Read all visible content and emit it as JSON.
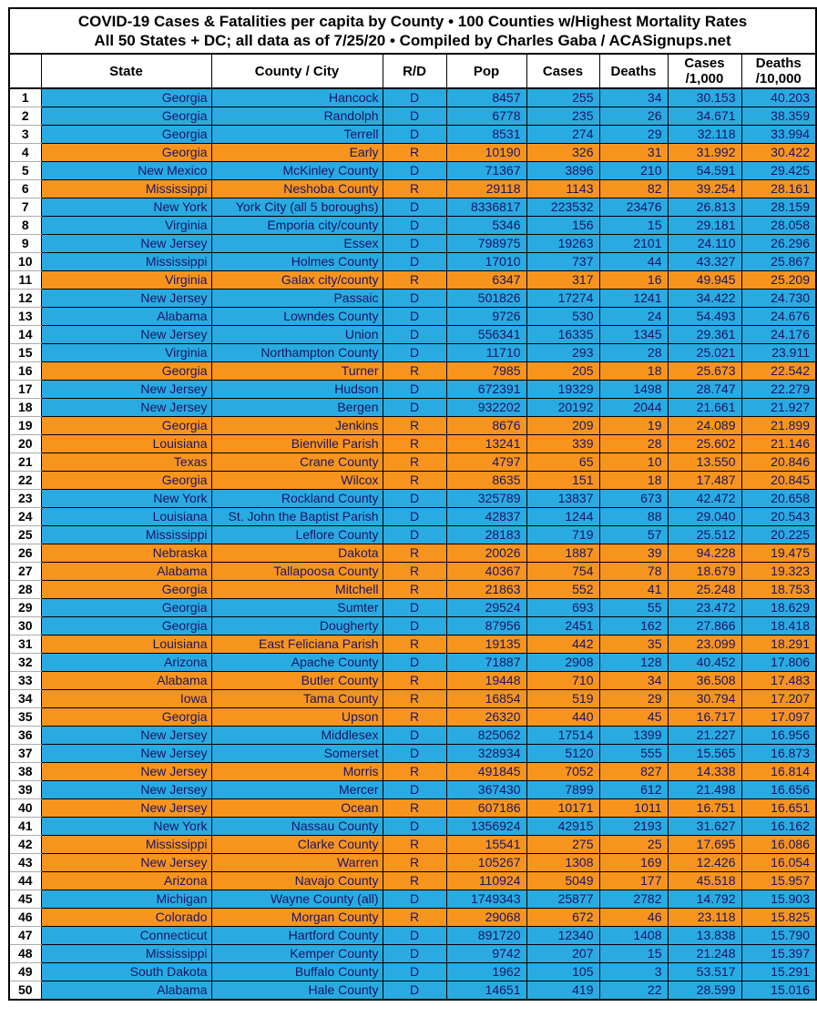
{
  "colors": {
    "dem_row": "#29ABE2",
    "rep_row": "#F7941E",
    "row_text": "#1B1464",
    "rank_text": "#000000",
    "border": "#000000",
    "header_bg": "#FFFFFF"
  },
  "legend": {
    "D_means": "dem_row color",
    "R_means": "rep_row color"
  },
  "chart_data": {
    "type": "table",
    "title": "COVID-19 Cases & Fatalities per capita by County • 100 Counties w/Highest Mortality Rates",
    "subtitle": "All 50 States + DC; all data as of 7/25/20  • Compiled by Charles Gaba / ACASignups.net",
    "columns": [
      {
        "label": ""
      },
      {
        "label": "State"
      },
      {
        "label": "County / City"
      },
      {
        "label": "R/D"
      },
      {
        "label": "Pop"
      },
      {
        "label": "Cases"
      },
      {
        "label": "Deaths"
      },
      {
        "label": "Cases",
        "sublabel": "/1,000"
      },
      {
        "label": "Deaths",
        "sublabel": "/10,000"
      }
    ],
    "rows": [
      [
        "1",
        "Georgia",
        "Hancock",
        "D",
        "8457",
        "255",
        "34",
        "30.153",
        "40.203"
      ],
      [
        "2",
        "Georgia",
        "Randolph",
        "D",
        "6778",
        "235",
        "26",
        "34.671",
        "38.359"
      ],
      [
        "3",
        "Georgia",
        "Terrell",
        "D",
        "8531",
        "274",
        "29",
        "32.118",
        "33.994"
      ],
      [
        "4",
        "Georgia",
        "Early",
        "R",
        "10190",
        "326",
        "31",
        "31.992",
        "30.422"
      ],
      [
        "5",
        "New Mexico",
        "McKinley County",
        "D",
        "71367",
        "3896",
        "210",
        "54.591",
        "29.425"
      ],
      [
        "6",
        "Mississippi",
        "Neshoba County",
        "R",
        "29118",
        "1143",
        "82",
        "39.254",
        "28.161"
      ],
      [
        "7",
        "New York",
        "York City (all 5 boroughs)",
        "D",
        "8336817",
        "223532",
        "23476",
        "26.813",
        "28.159"
      ],
      [
        "8",
        "Virginia",
        "Emporia city/county",
        "D",
        "5346",
        "156",
        "15",
        "29.181",
        "28.058"
      ],
      [
        "9",
        "New Jersey",
        "Essex",
        "D",
        "798975",
        "19263",
        "2101",
        "24.110",
        "26.296"
      ],
      [
        "10",
        "Mississippi",
        "Holmes County",
        "D",
        "17010",
        "737",
        "44",
        "43.327",
        "25.867"
      ],
      [
        "11",
        "Virginia",
        "Galax city/county",
        "R",
        "6347",
        "317",
        "16",
        "49.945",
        "25.209"
      ],
      [
        "12",
        "New Jersey",
        "Passaic",
        "D",
        "501826",
        "17274",
        "1241",
        "34.422",
        "24.730"
      ],
      [
        "13",
        "Alabama",
        "Lowndes County",
        "D",
        "9726",
        "530",
        "24",
        "54.493",
        "24.676"
      ],
      [
        "14",
        "New Jersey",
        "Union",
        "D",
        "556341",
        "16335",
        "1345",
        "29.361",
        "24.176"
      ],
      [
        "15",
        "Virginia",
        "Northampton County",
        "D",
        "11710",
        "293",
        "28",
        "25.021",
        "23.911"
      ],
      [
        "16",
        "Georgia",
        "Turner",
        "R",
        "7985",
        "205",
        "18",
        "25.673",
        "22.542"
      ],
      [
        "17",
        "New Jersey",
        "Hudson",
        "D",
        "672391",
        "19329",
        "1498",
        "28.747",
        "22.279"
      ],
      [
        "18",
        "New Jersey",
        "Bergen",
        "D",
        "932202",
        "20192",
        "2044",
        "21.661",
        "21.927"
      ],
      [
        "19",
        "Georgia",
        "Jenkins",
        "R",
        "8676",
        "209",
        "19",
        "24.089",
        "21.899"
      ],
      [
        "20",
        "Louisiana",
        "Bienville Parish",
        "R",
        "13241",
        "339",
        "28",
        "25.602",
        "21.146"
      ],
      [
        "21",
        "Texas",
        "Crane County",
        "R",
        "4797",
        "65",
        "10",
        "13.550",
        "20.846"
      ],
      [
        "22",
        "Georgia",
        "Wilcox",
        "R",
        "8635",
        "151",
        "18",
        "17.487",
        "20.845"
      ],
      [
        "23",
        "New York",
        "Rockland County",
        "D",
        "325789",
        "13837",
        "673",
        "42.472",
        "20.658"
      ],
      [
        "24",
        "Louisiana",
        "St. John the Baptist Parish",
        "D",
        "42837",
        "1244",
        "88",
        "29.040",
        "20.543"
      ],
      [
        "25",
        "Mississippi",
        "Leflore County",
        "D",
        "28183",
        "719",
        "57",
        "25.512",
        "20.225"
      ],
      [
        "26",
        "Nebraska",
        "Dakota",
        "R",
        "20026",
        "1887",
        "39",
        "94.228",
        "19.475"
      ],
      [
        "27",
        "Alabama",
        "Tallapoosa County",
        "R",
        "40367",
        "754",
        "78",
        "18.679",
        "19.323"
      ],
      [
        "28",
        "Georgia",
        "Mitchell",
        "R",
        "21863",
        "552",
        "41",
        "25.248",
        "18.753"
      ],
      [
        "29",
        "Georgia",
        "Sumter",
        "D",
        "29524",
        "693",
        "55",
        "23.472",
        "18.629"
      ],
      [
        "30",
        "Georgia",
        "Dougherty",
        "D",
        "87956",
        "2451",
        "162",
        "27.866",
        "18.418"
      ],
      [
        "31",
        "Louisiana",
        "East Feliciana Parish",
        "R",
        "19135",
        "442",
        "35",
        "23.099",
        "18.291"
      ],
      [
        "32",
        "Arizona",
        "Apache County",
        "D",
        "71887",
        "2908",
        "128",
        "40.452",
        "17.806"
      ],
      [
        "33",
        "Alabama",
        "Butler County",
        "R",
        "19448",
        "710",
        "34",
        "36.508",
        "17.483"
      ],
      [
        "34",
        "Iowa",
        "Tama County",
        "R",
        "16854",
        "519",
        "29",
        "30.794",
        "17.207"
      ],
      [
        "35",
        "Georgia",
        "Upson",
        "R",
        "26320",
        "440",
        "45",
        "16.717",
        "17.097"
      ],
      [
        "36",
        "New Jersey",
        "Middlesex",
        "D",
        "825062",
        "17514",
        "1399",
        "21.227",
        "16.956"
      ],
      [
        "37",
        "New Jersey",
        "Somerset",
        "D",
        "328934",
        "5120",
        "555",
        "15.565",
        "16.873"
      ],
      [
        "38",
        "New Jersey",
        "Morris",
        "R",
        "491845",
        "7052",
        "827",
        "14.338",
        "16.814"
      ],
      [
        "39",
        "New Jersey",
        "Mercer",
        "D",
        "367430",
        "7899",
        "612",
        "21.498",
        "16.656"
      ],
      [
        "40",
        "New Jersey",
        "Ocean",
        "R",
        "607186",
        "10171",
        "1011",
        "16.751",
        "16.651"
      ],
      [
        "41",
        "New York",
        "Nassau County",
        "D",
        "1356924",
        "42915",
        "2193",
        "31.627",
        "16.162"
      ],
      [
        "42",
        "Mississippi",
        "Clarke County",
        "R",
        "15541",
        "275",
        "25",
        "17.695",
        "16.086"
      ],
      [
        "43",
        "New Jersey",
        "Warren",
        "R",
        "105267",
        "1308",
        "169",
        "12.426",
        "16.054"
      ],
      [
        "44",
        "Arizona",
        "Navajo County",
        "R",
        "110924",
        "5049",
        "177",
        "45.518",
        "15.957"
      ],
      [
        "45",
        "Michigan",
        "Wayne County (all)",
        "D",
        "1749343",
        "25877",
        "2782",
        "14.792",
        "15.903"
      ],
      [
        "46",
        "Colorado",
        "Morgan County",
        "R",
        "29068",
        "672",
        "46",
        "23.118",
        "15.825"
      ],
      [
        "47",
        "Connecticut",
        "Hartford County",
        "D",
        "891720",
        "12340",
        "1408",
        "13.838",
        "15.790"
      ],
      [
        "48",
        "Mississippi",
        "Kemper County",
        "D",
        "9742",
        "207",
        "15",
        "21.248",
        "15.397"
      ],
      [
        "49",
        "South Dakota",
        "Buffalo County",
        "D",
        "1962",
        "105",
        "3",
        "53.517",
        "15.291"
      ],
      [
        "50",
        "Alabama",
        "Hale County",
        "D",
        "14651",
        "419",
        "22",
        "28.599",
        "15.016"
      ]
    ]
  }
}
